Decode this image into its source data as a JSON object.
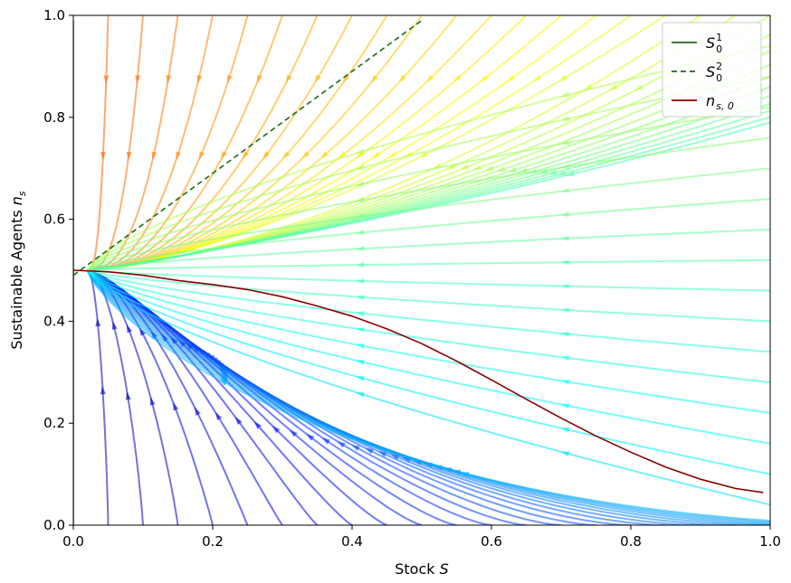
{
  "chart_data": {
    "type": "line",
    "title": "",
    "xlabel": "Stock ",
    "xlabel_var": "S",
    "ylabel": "Sustainable Agents ",
    "ylabel_var": "n",
    "ylabel_sub": "s",
    "xlim": [
      0.0,
      1.0
    ],
    "ylim": [
      0.0,
      1.0
    ],
    "x_ticks": [
      0.0,
      0.2,
      0.4,
      0.6,
      0.8,
      1.0
    ],
    "y_ticks": [
      0.0,
      0.2,
      0.4,
      0.6,
      0.8,
      1.0
    ],
    "x_tick_labels": [
      "0.0",
      "0.2",
      "0.4",
      "0.6",
      "0.8",
      "1.0"
    ],
    "y_tick_labels": [
      "0.0",
      "0.2",
      "0.4",
      "0.6",
      "0.8",
      "1.0"
    ],
    "grid": false,
    "legend_position": "top-right",
    "series": [
      {
        "name": "S",
        "name_sup": "1",
        "name_sub": "0",
        "style": "solid",
        "color": "#1a6b1a",
        "x": [
          0.0,
          0.0
        ],
        "y": [
          0.0,
          0.99
        ]
      },
      {
        "name": "S",
        "name_sup": "2",
        "name_sub": "0",
        "style": "dashed",
        "color": "#1a6b1a",
        "x": [
          0.0,
          0.5
        ],
        "y": [
          0.49,
          0.99
        ]
      },
      {
        "name": "n",
        "name_sub": "s, 0",
        "style": "solid",
        "color": "#8b0000",
        "x": [
          0.0,
          0.05,
          0.1,
          0.15,
          0.2,
          0.25,
          0.3,
          0.35,
          0.4,
          0.45,
          0.5,
          0.55,
          0.6,
          0.65,
          0.7,
          0.75,
          0.8,
          0.85,
          0.9,
          0.95,
          0.99
        ],
        "y": [
          0.5,
          0.497,
          0.49,
          0.48,
          0.472,
          0.462,
          0.448,
          0.43,
          0.41,
          0.385,
          0.356,
          0.322,
          0.285,
          0.247,
          0.21,
          0.175,
          0.143,
          0.114,
          0.09,
          0.072,
          0.064
        ]
      }
    ]
  }
}
